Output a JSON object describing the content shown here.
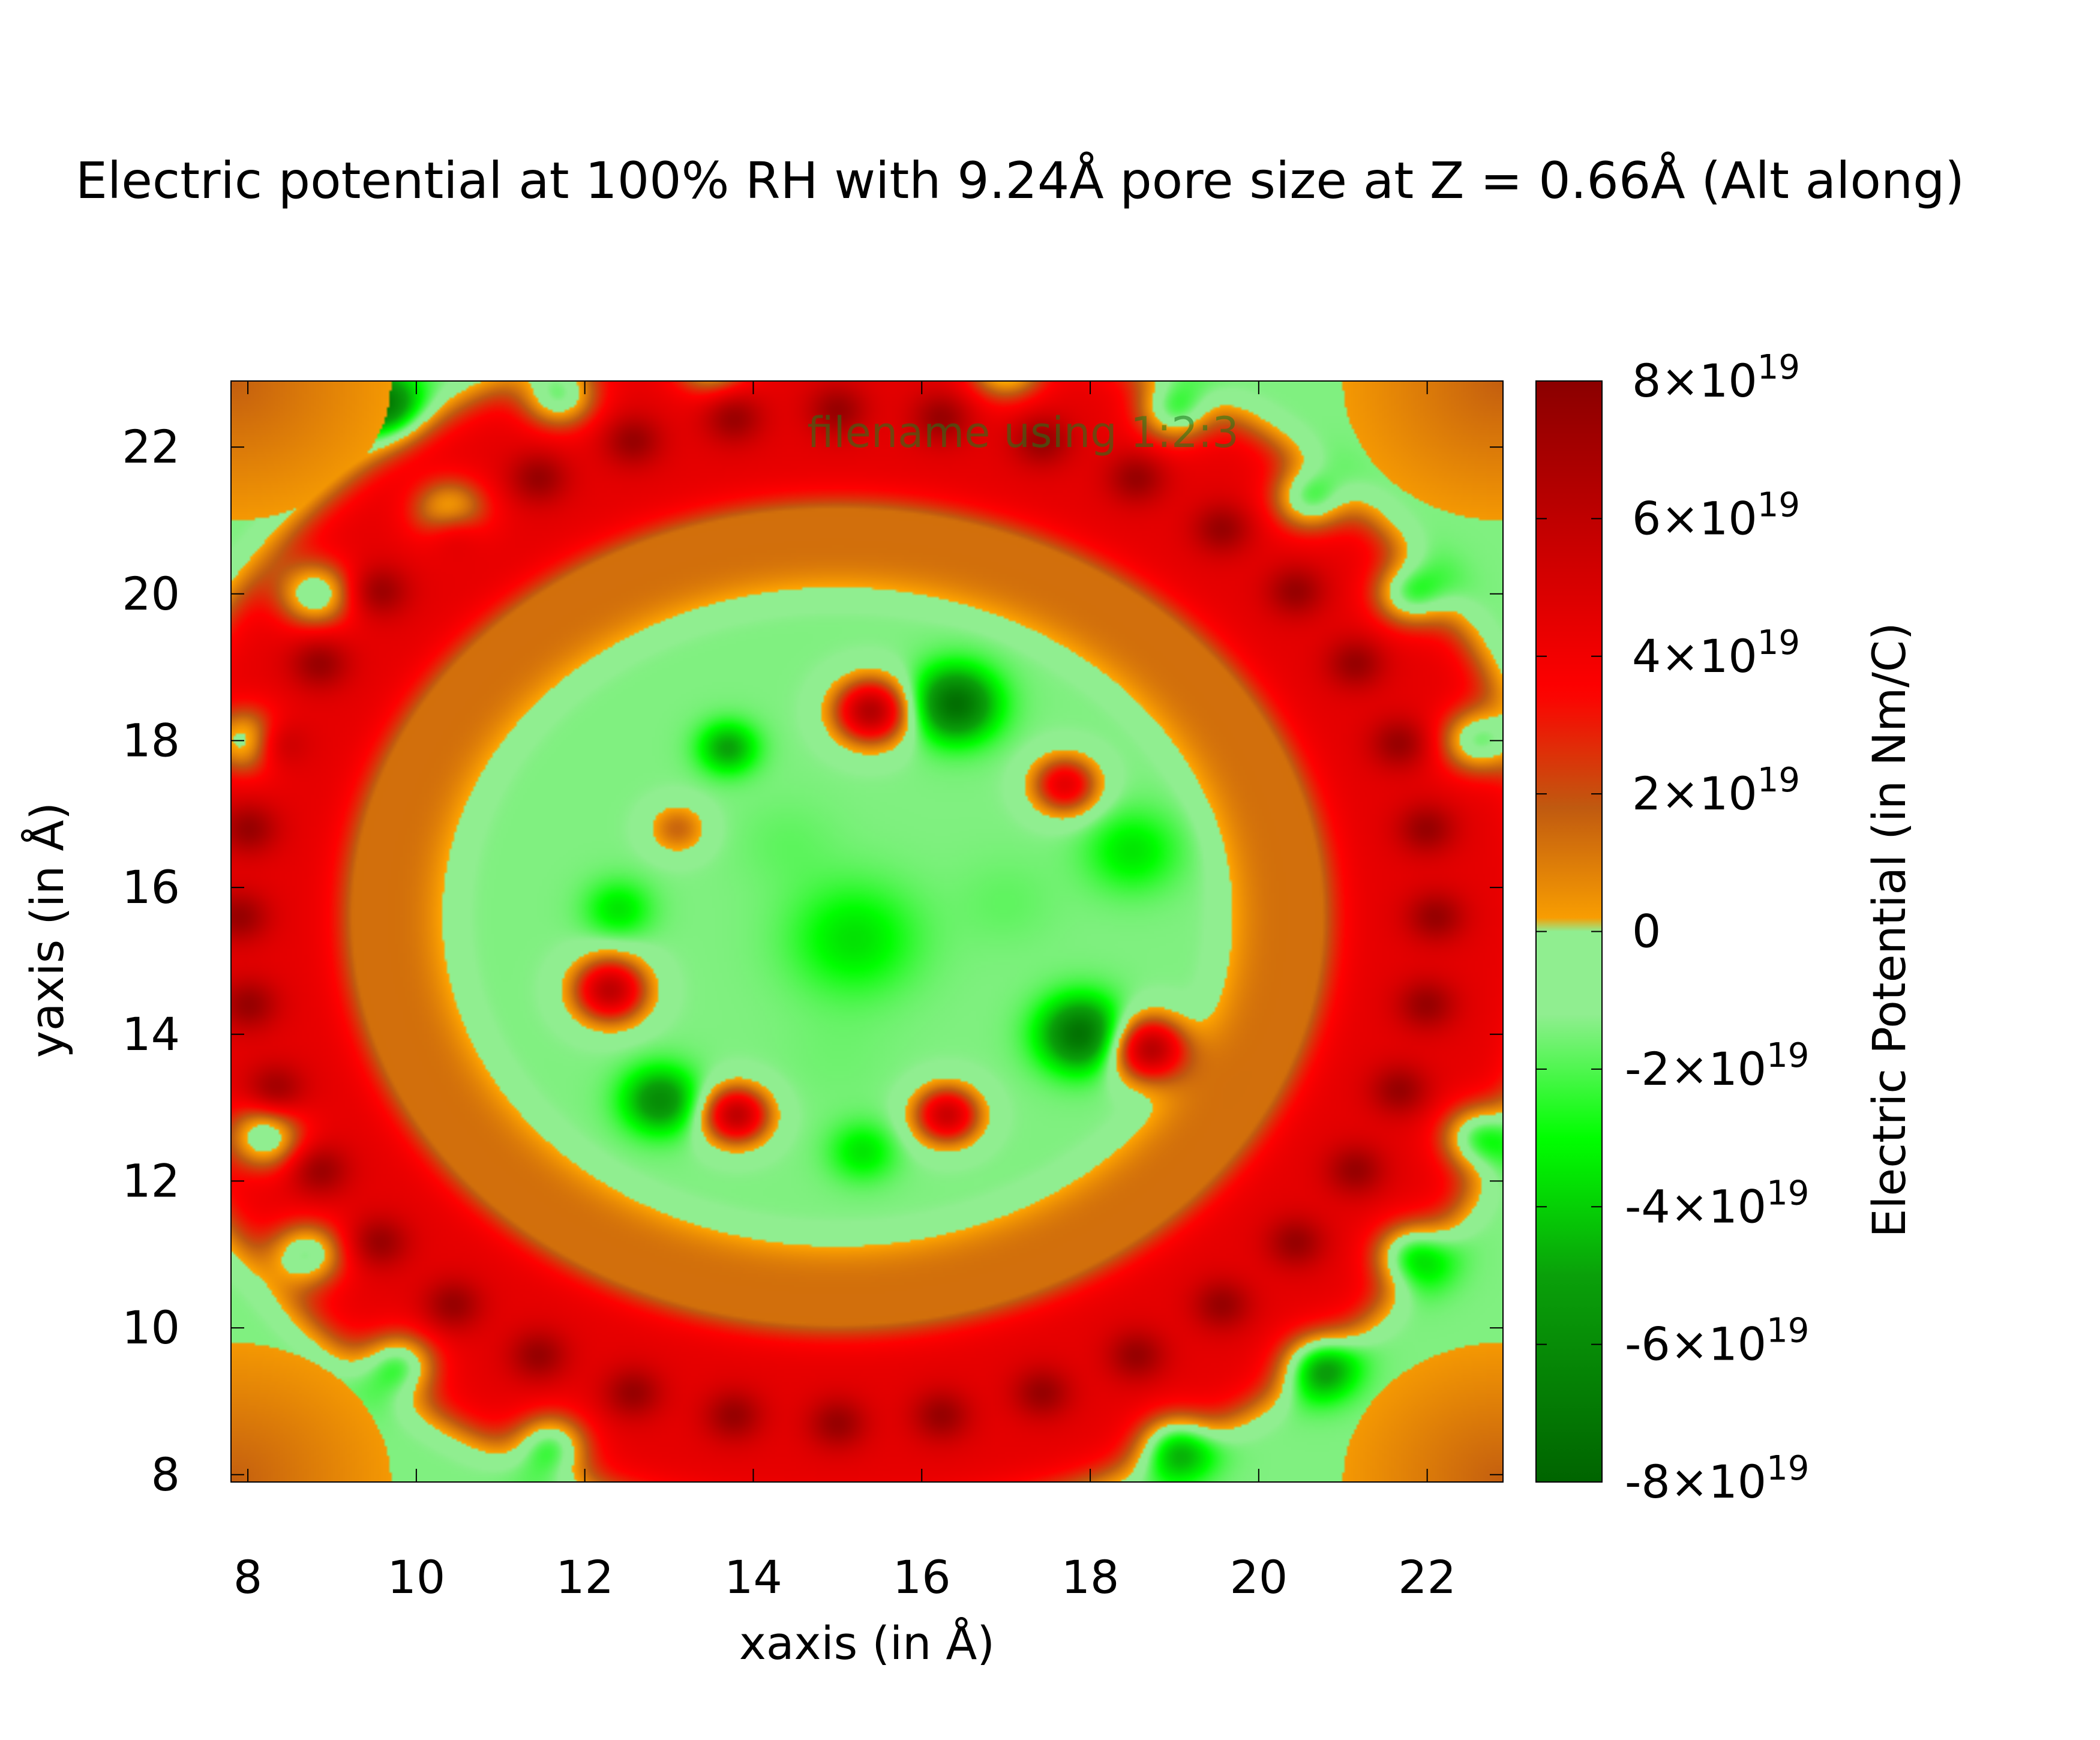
{
  "chart_data": {
    "type": "heatmap",
    "title": "Electric potential at 100% RH with 9.24Å pore size at Z = 0.66Å (Alt along)",
    "key_label": "filename using 1:2:3",
    "xlabel": "xaxis (in Å)",
    "ylabel": "yaxis (in Å)",
    "colorbar_label": "Electric Potential (in Nm/C)",
    "xlim": [
      7.8,
      22.9
    ],
    "ylim": [
      7.9,
      22.9
    ],
    "clim": [
      -8e+19,
      8e+19
    ],
    "x_ticks": [
      "8",
      "10",
      "12",
      "14",
      "16",
      "18",
      "20",
      "22"
    ],
    "x_tick_values": [
      8,
      10,
      12,
      14,
      16,
      18,
      20,
      22
    ],
    "y_ticks": [
      "8",
      "10",
      "12",
      "14",
      "16",
      "18",
      "20",
      "22"
    ],
    "y_tick_values": [
      8,
      10,
      12,
      14,
      16,
      18,
      20,
      22
    ],
    "colorbar_ticks": [
      {
        "mant": "8×10",
        "exp": "19",
        "value": 8e+19
      },
      {
        "mant": "6×10",
        "exp": "19",
        "value": 6e+19
      },
      {
        "mant": "4×10",
        "exp": "19",
        "value": 4e+19
      },
      {
        "mant": "2×10",
        "exp": "19",
        "value": 2e+19
      },
      {
        "mant": "0",
        "exp": "",
        "value": 0
      },
      {
        "mant": "-2×10",
        "exp": "19",
        "value": -2e+19
      },
      {
        "mant": "-4×10",
        "exp": "19",
        "value": -4e+19
      },
      {
        "mant": "-6×10",
        "exp": "19",
        "value": -6e+19
      },
      {
        "mant": "-8×10",
        "exp": "19",
        "value": -8e+19
      }
    ],
    "colormap": [
      {
        "value": -8e+19,
        "color": "#006400"
      },
      {
        "value": -5e+19,
        "color": "#0aa00a"
      },
      {
        "value": -3e+19,
        "color": "#00ff00"
      },
      {
        "value": -1.2e+19,
        "color": "#90ee90"
      },
      {
        "value": 0,
        "color": "#90ee90"
      },
      {
        "value": 1e+17,
        "color": "#ffa500"
      },
      {
        "value": 1.8e+19,
        "color": "#c05a10"
      },
      {
        "value": 3.5e+19,
        "color": "#ff0000"
      },
      {
        "value": 8e+19,
        "color": "#8b0000"
      }
    ],
    "field_model": {
      "background": -1.4e+19,
      "ring": {
        "center": [
          15.0,
          15.6
        ],
        "radii": [
          7.1,
          6.9
        ],
        "width": 1.4,
        "value": 4.5e+19
      },
      "inner_band": {
        "radii": [
          5.5,
          5.3
        ],
        "width": 0.9,
        "value": 1.3e+19
      },
      "ring_atoms": {
        "count": 36,
        "radii": [
          7.1,
          6.9
        ],
        "value": 7.5e+19
      },
      "outer_atoms": [
        [
          9.6,
          22.6
        ],
        [
          11.7,
          22.7
        ],
        [
          10.4,
          21.1
        ],
        [
          8.8,
          20.0
        ],
        [
          8.0,
          18.0
        ],
        [
          8.2,
          12.6
        ],
        [
          8.7,
          11.0
        ],
        [
          9.8,
          9.5
        ],
        [
          11.6,
          8.4
        ],
        [
          19.0,
          8.4
        ],
        [
          20.7,
          9.5
        ],
        [
          21.8,
          11.0
        ],
        [
          22.6,
          12.6
        ],
        [
          22.6,
          18.0
        ],
        [
          21.8,
          20.0
        ],
        [
          20.6,
          21.3
        ],
        [
          19.0,
          22.5
        ],
        [
          13.5,
          23.2
        ],
        [
          17.0,
          23.1
        ]
      ],
      "outer_atom_value": -7e+19,
      "corner_value": 1.4e+19,
      "inner_features": [
        {
          "x": 16.4,
          "y": 18.5,
          "r": 0.5,
          "v": -7.5e+19
        },
        {
          "x": 15.4,
          "y": 18.4,
          "r": 0.45,
          "v": 6.5e+19
        },
        {
          "x": 13.7,
          "y": 17.9,
          "r": 0.35,
          "v": -5e+19
        },
        {
          "x": 17.7,
          "y": 17.4,
          "r": 0.4,
          "v": 4.5e+19
        },
        {
          "x": 13.1,
          "y": 16.8,
          "r": 0.35,
          "v": 1.5e+19
        },
        {
          "x": 18.5,
          "y": 16.5,
          "r": 0.55,
          "v": -3.5e+19
        },
        {
          "x": 12.4,
          "y": 15.7,
          "r": 0.4,
          "v": -3.5e+19
        },
        {
          "x": 15.2,
          "y": 15.3,
          "r": 0.75,
          "v": -3.6e+19
        },
        {
          "x": 12.3,
          "y": 14.6,
          "r": 0.45,
          "v": 6e+19
        },
        {
          "x": 17.9,
          "y": 14.0,
          "r": 0.5,
          "v": -7.5e+19
        },
        {
          "x": 18.7,
          "y": 13.8,
          "r": 0.45,
          "v": 6.5e+19
        },
        {
          "x": 12.9,
          "y": 13.1,
          "r": 0.45,
          "v": -6e+19
        },
        {
          "x": 13.8,
          "y": 12.9,
          "r": 0.4,
          "v": 6e+19
        },
        {
          "x": 16.3,
          "y": 12.9,
          "r": 0.4,
          "v": 5.5e+19
        },
        {
          "x": 15.3,
          "y": 12.4,
          "r": 0.4,
          "v": -3.5e+19
        },
        {
          "x": 14.4,
          "y": 16.6,
          "r": 0.6,
          "v": -1.8e+19
        },
        {
          "x": 17.0,
          "y": 15.8,
          "r": 0.6,
          "v": -1.8e+19
        },
        {
          "x": 15.0,
          "y": 13.7,
          "r": 0.7,
          "v": -1.6e+19
        }
      ]
    }
  }
}
